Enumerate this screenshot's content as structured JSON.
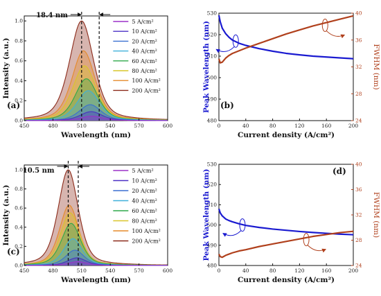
{
  "chart_data": [
    {
      "panel": "(a)",
      "type": "line",
      "xlabel": "Wavelength (nm)",
      "ylabel": "Intensity (a.u.)",
      "xlim": [
        450,
        600
      ],
      "ylim": [
        0,
        1.05
      ],
      "xticks": [
        "450",
        "480",
        "510",
        "540",
        "570",
        "600"
      ],
      "yticks": [
        "0.0",
        "0.2",
        "0.4",
        "0.6",
        "0.8",
        "1.0"
      ],
      "annotation": "18.4 nm",
      "marker_lines_x": [
        510,
        528.4
      ],
      "legend_position": "right",
      "series": [
        {
          "name": "5 A/cm²",
          "color": "#9b30c8",
          "peak": 0.045,
          "center": 521,
          "width": 27
        },
        {
          "name": "10 A/cm²",
          "color": "#4a2fc4",
          "peak": 0.09,
          "center": 520,
          "width": 27
        },
        {
          "name": "20 A/cm²",
          "color": "#3a6fd0",
          "peak": 0.16,
          "center": 519,
          "width": 27
        },
        {
          "name": "40 A/cm²",
          "color": "#3fb0d9",
          "peak": 0.3,
          "center": 517,
          "width": 28
        },
        {
          "name": "60 A/cm²",
          "color": "#2ea84a",
          "peak": 0.42,
          "center": 515,
          "width": 28
        },
        {
          "name": "80 A/cm²",
          "color": "#d9c52a",
          "peak": 0.55,
          "center": 513,
          "width": 29
        },
        {
          "name": "100 A/cm²",
          "color": "#e58a2a",
          "peak": 0.7,
          "center": 512,
          "width": 29
        },
        {
          "name": "200 A/cm²",
          "color": "#8b2a1a",
          "peak": 1.0,
          "center": 510,
          "width": 30
        }
      ]
    },
    {
      "panel": "(b)",
      "type": "line",
      "xlabel": "Current density (A/cm²)",
      "ylabel": "Peak Wavelength (nm)",
      "y2label": "FWHM (nm)",
      "xlim": [
        0,
        200
      ],
      "ylim": [
        480,
        530
      ],
      "y2lim": [
        24,
        40
      ],
      "xticks": [
        "0",
        "40",
        "80",
        "120",
        "160",
        "200"
      ],
      "yticks": [
        "480",
        "490",
        "500",
        "510",
        "520",
        "530"
      ],
      "y2ticks": [
        "24",
        "28",
        "32",
        "36",
        "40"
      ],
      "series": [
        {
          "name": "Peak Wavelength",
          "axis": "left",
          "color": "#1a1ad0",
          "x": [
            0,
            2,
            5,
            10,
            15,
            20,
            30,
            40,
            60,
            80,
            100,
            120,
            140,
            160,
            180,
            200
          ],
          "y": [
            529,
            526,
            523,
            520.5,
            518.8,
            517.5,
            516,
            515,
            513.5,
            512.3,
            511.3,
            510.6,
            510,
            509.6,
            509.2,
            508.8
          ]
        },
        {
          "name": "FWHM",
          "axis": "right",
          "color": "#b0401c",
          "x": [
            0,
            2,
            5,
            10,
            15,
            20,
            30,
            40,
            60,
            80,
            100,
            120,
            140,
            160,
            180,
            200
          ],
          "y": [
            33.2,
            32.6,
            32.7,
            33.3,
            33.7,
            34.0,
            34.4,
            34.8,
            35.5,
            36.2,
            36.9,
            37.5,
            38.1,
            38.6,
            39.1,
            39.6
          ]
        }
      ]
    },
    {
      "panel": "(c)",
      "type": "line",
      "xlabel": "Wavelength (nm)",
      "ylabel": "Intensity (a.u.)",
      "xlim": [
        450,
        600
      ],
      "ylim": [
        0,
        1.05
      ],
      "xticks": [
        "450",
        "480",
        "510",
        "540",
        "570",
        "600"
      ],
      "yticks": [
        "0.0",
        "0.2",
        "0.4",
        "0.6",
        "0.8",
        "1.0"
      ],
      "annotation": "10.5 nm",
      "marker_lines_x": [
        496,
        506.5
      ],
      "legend_position": "right",
      "series": [
        {
          "name": "5 A/cm²",
          "color": "#9b30c8",
          "peak": 0.04,
          "center": 506,
          "width": 23
        },
        {
          "name": "10 A/cm²",
          "color": "#4a2fc4",
          "peak": 0.08,
          "center": 505,
          "width": 23
        },
        {
          "name": "20 A/cm²",
          "color": "#3a6fd0",
          "peak": 0.16,
          "center": 503,
          "width": 23
        },
        {
          "name": "40 A/cm²",
          "color": "#3fb0d9",
          "peak": 0.28,
          "center": 501,
          "width": 23
        },
        {
          "name": "60 A/cm²",
          "color": "#2ea84a",
          "peak": 0.44,
          "center": 499,
          "width": 24
        },
        {
          "name": "80 A/cm²",
          "color": "#d9c52a",
          "peak": 0.55,
          "center": 498,
          "width": 24
        },
        {
          "name": "100 A/cm²",
          "color": "#e58a2a",
          "peak": 0.63,
          "center": 497,
          "width": 24
        },
        {
          "name": "200 A/cm²",
          "color": "#8b2a1a",
          "peak": 1.0,
          "center": 496,
          "width": 25
        }
      ]
    },
    {
      "panel": "(d)",
      "type": "line",
      "xlabel": "Current density (A/cm²)",
      "ylabel": "Peak Wavelength (nm)",
      "y2label": "FWHM (nm)",
      "xlim": [
        0,
        200
      ],
      "ylim": [
        480,
        530
      ],
      "y2lim": [
        24,
        40
      ],
      "xticks": [
        "0",
        "40",
        "80",
        "120",
        "160",
        "200"
      ],
      "yticks": [
        "480",
        "490",
        "500",
        "510",
        "520",
        "530"
      ],
      "y2ticks": [
        "24",
        "28",
        "32",
        "36",
        "40"
      ],
      "series": [
        {
          "name": "Peak Wavelength",
          "axis": "left",
          "color": "#1a1ad0",
          "x": [
            0,
            2,
            5,
            10,
            15,
            20,
            30,
            40,
            60,
            80,
            100,
            120,
            140,
            160,
            180,
            200
          ],
          "y": [
            508,
            506,
            504.5,
            503,
            502.2,
            501.6,
            500.6,
            499.8,
            498.8,
            498,
            497.4,
            496.8,
            496.3,
            495.9,
            495.5,
            495.2
          ]
        },
        {
          "name": "FWHM",
          "axis": "right",
          "color": "#b0401c",
          "x": [
            0,
            2,
            5,
            10,
            15,
            20,
            30,
            40,
            60,
            80,
            100,
            120,
            140,
            160,
            180,
            200
          ],
          "y": [
            25.8,
            25.4,
            25.3,
            25.6,
            25.8,
            26.0,
            26.3,
            26.5,
            27.0,
            27.4,
            27.8,
            28.2,
            28.6,
            28.9,
            29.2,
            29.4
          ]
        }
      ]
    }
  ]
}
